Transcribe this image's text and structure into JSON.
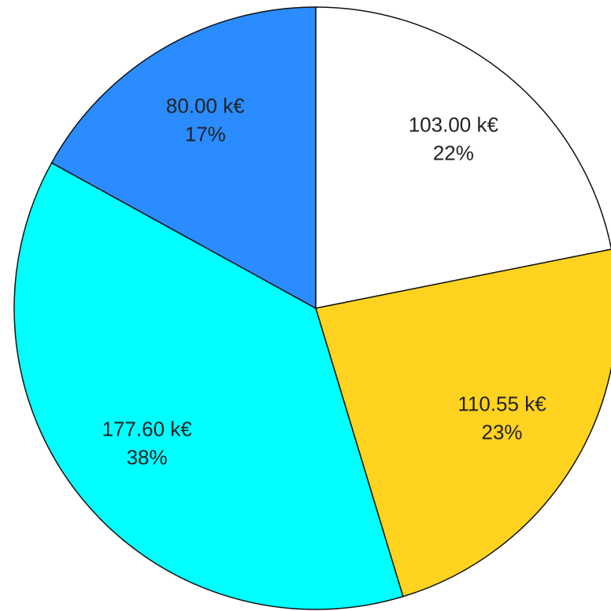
{
  "chart_data": {
    "type": "pie",
    "categories": [
      null,
      null,
      null,
      null
    ],
    "values": [
      103.0,
      110.55,
      177.6,
      80.0
    ],
    "value_labels": [
      "103.00 k€",
      "110.55 k€",
      "177.60 k€",
      "80.00 k€"
    ],
    "percent_labels": [
      "22%",
      "23%",
      "38%",
      "17%"
    ],
    "colors": [
      "#ffffff",
      "#ffd320",
      "#00ffff",
      "#2a8cff"
    ]
  }
}
